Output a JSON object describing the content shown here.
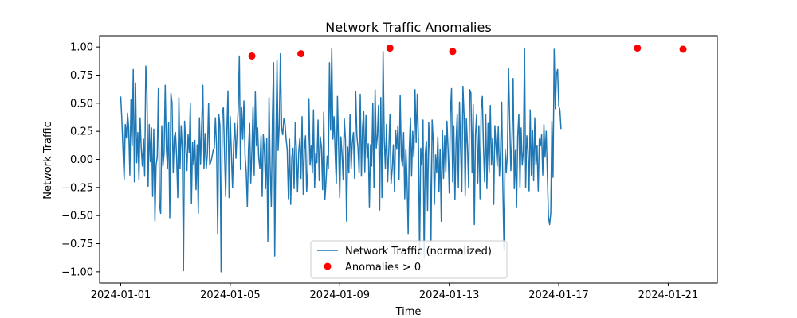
{
  "chart_data": {
    "type": "line",
    "title": "Network Traffic Anomalies",
    "xlabel": "Time",
    "ylabel": "Network Traffic",
    "xlim": [
      "2023-12-31T05:30",
      "2024-01-22T19:00"
    ],
    "ylim": [
      -1.1,
      1.1
    ],
    "x_ticks": [
      "2024-01-01",
      "2024-01-05",
      "2024-01-09",
      "2024-01-13",
      "2024-01-17",
      "2024-01-21"
    ],
    "y_ticks": [
      -1.0,
      -0.75,
      -0.5,
      -0.25,
      0.0,
      0.25,
      0.5,
      0.75,
      1.0
    ],
    "y_tick_labels": [
      "−1.00",
      "−0.75",
      "−0.50",
      "−0.25",
      "0.00",
      "0.25",
      "0.50",
      "0.75",
      "1.00"
    ],
    "grid": false,
    "legend_position": "lower-center",
    "series": [
      {
        "name": "Network Traffic (normalized)",
        "kind": "line",
        "color": "#1f77b4",
        "x_start": "2024-01-01T00:00",
        "x_step_hours": 1,
        "values": [
          0.56,
          0.35,
          0.08,
          -0.18,
          0.31,
          0.19,
          0.41,
          0.28,
          -0.14,
          0.53,
          0.12,
          0.8,
          -0.2,
          0.68,
          -0.03,
          0.24,
          -0.18,
          0.37,
          0.1,
          -0.06,
          0.18,
          -0.15,
          0.83,
          0.6,
          -0.24,
          0.31,
          -0.02,
          0.28,
          -0.33,
          0.27,
          -0.55,
          -0.05,
          0.02,
          0.63,
          -0.4,
          -0.48,
          0.3,
          -0.06,
          0.05,
          0.66,
          0.1,
          -0.08,
          0.33,
          -0.52,
          0.59,
          0.5,
          -0.12,
          0.2,
          0.24,
          0.02,
          -0.34,
          0.55,
          -0.08,
          0.3,
          0.08,
          -0.99,
          0.34,
          0.12,
          -0.1,
          0.22,
          0.06,
          0.5,
          -0.39,
          0.15,
          -0.05,
          0.17,
          -0.27,
          0.13,
          -0.48,
          0.37,
          -0.04,
          0.31,
          0.66,
          -0.08,
          0.23,
          -0.08,
          0.06,
          0.5,
          -0.05,
          -0.02,
          0.02,
          0.08,
          0.1,
          0.37,
          0.12,
          -0.66,
          0.4,
          0.3,
          -1.0,
          0.42,
          0.46,
          0.05,
          -0.33,
          0.23,
          0.61,
          -0.34,
          0.38,
          0.05,
          -0.25,
          0.15,
          0.32,
          0.01,
          0.24,
          0.45,
          0.92,
          -0.09,
          0.46,
          0.18,
          0.52,
          0.03,
          -0.11,
          -0.42,
          0.09,
          0.32,
          -0.21,
          0.08,
          0.47,
          -0.14,
          0.6,
          0.12,
          0.28,
          0.01,
          -0.08,
          0.21,
          -0.33,
          0.22,
          0.07,
          -0.26,
          0.19,
          -0.73,
          0.55,
          -0.07,
          -0.42,
          0.38,
          0.86,
          -0.86,
          0.14,
          0.88,
          0.08,
          0.31,
          0.94,
          0.28,
          0.22,
          0.36,
          0.32,
          0.18,
          0.08,
          -0.35,
          0.18,
          -0.4,
          0.02,
          0.1,
          -0.26,
          0.33,
          0.09,
          -0.29,
          0.06,
          0.19,
          -0.17,
          0.38,
          -0.31,
          0.09,
          0.21,
          -0.29,
          -0.1,
          0.54,
          -0.05,
          0.12,
          -0.12,
          0.44,
          -0.25,
          0.05,
          -0.03,
          0.35,
          -0.19,
          0.2,
          0.1,
          -0.27,
          0.42,
          -0.36,
          -0.19,
          0.03,
          -0.08,
          0.86,
          0.26,
          0.99,
          0.18,
          0.38,
          0.05,
          -0.21,
          0.56,
          0.12,
          -0.34,
          0.2,
          0.05,
          -0.18,
          0.36,
          0.18,
          -0.55,
          0.11,
          -0.12,
          0.4,
          -0.08,
          0.15,
          0.24,
          -0.17,
          0.6,
          0.22,
          0.1,
          -0.12,
          0.58,
          -0.15,
          0.28,
          0.43,
          -0.11,
          0.39,
          0.01,
          0.14,
          -0.43,
          0.13,
          -0.06,
          0.5,
          -0.25,
          0.62,
          0.1,
          0.21,
          0.48,
          -0.45,
          0.55,
          -0.34,
          0.96,
          0.18,
          -0.08,
          0.31,
          -0.2,
          0.07,
          0.4,
          -0.22,
          -0.08,
          0.13,
          -0.29,
          0.26,
          0.09,
          0.3,
          -0.18,
          0.57,
          0.02,
          -0.06,
          0.24,
          -0.35,
          0.09,
          -0.19,
          -0.66,
          0.1,
          0.37,
          -0.15,
          0.25,
          0.02,
          0.62,
          0.15,
          0.58,
          0.18,
          -0.85,
          0.1,
          -0.05,
          0.35,
          -0.88,
          0.05,
          0.16,
          -0.46,
          0.33,
          0.06,
          -0.73,
          0.35,
          0.16,
          -0.4,
          0.04,
          -0.12,
          0.2,
          -0.29,
          0.09,
          -0.55,
          0.26,
          -0.17,
          0.21,
          -0.11,
          0.34,
          0.08,
          -0.3,
          0.41,
          0.63,
          -0.2,
          0.3,
          -0.36,
          0.16,
          0.4,
          -0.25,
          0.51,
          0.08,
          -0.29,
          0.65,
          0.39,
          -0.32,
          0.36,
          0.12,
          -0.25,
          0.62,
          0.59,
          -0.12,
          0.49,
          -0.58,
          0.22,
          0.4,
          -0.21,
          0.3,
          -0.35,
          0.45,
          0.56,
          0.11,
          -0.2,
          0.4,
          -0.26,
          0.32,
          -0.11,
          0.48,
          -0.05,
          0.19,
          -0.4,
          0.3,
          0.12,
          -0.06,
          0.29,
          -0.15,
          0.08,
          0.51,
          -0.25,
          -0.8,
          0.09,
          -0.12,
          0.06,
          0.81,
          0.33,
          -0.1,
          0.18,
          0.72,
          -0.26,
          0.08,
          -0.43,
          0.2,
          0.4,
          -0.25,
          0.28,
          -0.05,
          0.07,
          0.99,
          -0.25,
          0.21,
          0.08,
          -0.28,
          0.44,
          -0.14,
          0.26,
          -0.19,
          0.37,
          -0.05,
          0.12,
          -0.28,
          0.18,
          0.12,
          0.22,
          -0.14,
          0.31,
          0.02,
          0.25,
          -0.13,
          -0.51,
          -0.58,
          -0.48,
          0.34,
          -0.16,
          0.98,
          0.45,
          0.76,
          0.8,
          0.48,
          0.44,
          0.27
        ]
      },
      {
        "name": "Anomalies > 0",
        "kind": "scatter",
        "color": "#ff0000",
        "points": [
          {
            "x": "2024-01-05T19:00",
            "y": 0.92
          },
          {
            "x": "2024-01-07T14:00",
            "y": 0.94
          },
          {
            "x": "2024-01-10T20:00",
            "y": 0.99
          },
          {
            "x": "2024-01-13T03:00",
            "y": 0.96
          },
          {
            "x": "2024-01-19T21:00",
            "y": 0.99
          },
          {
            "x": "2024-01-21T13:00",
            "y": 0.98
          }
        ]
      }
    ]
  }
}
